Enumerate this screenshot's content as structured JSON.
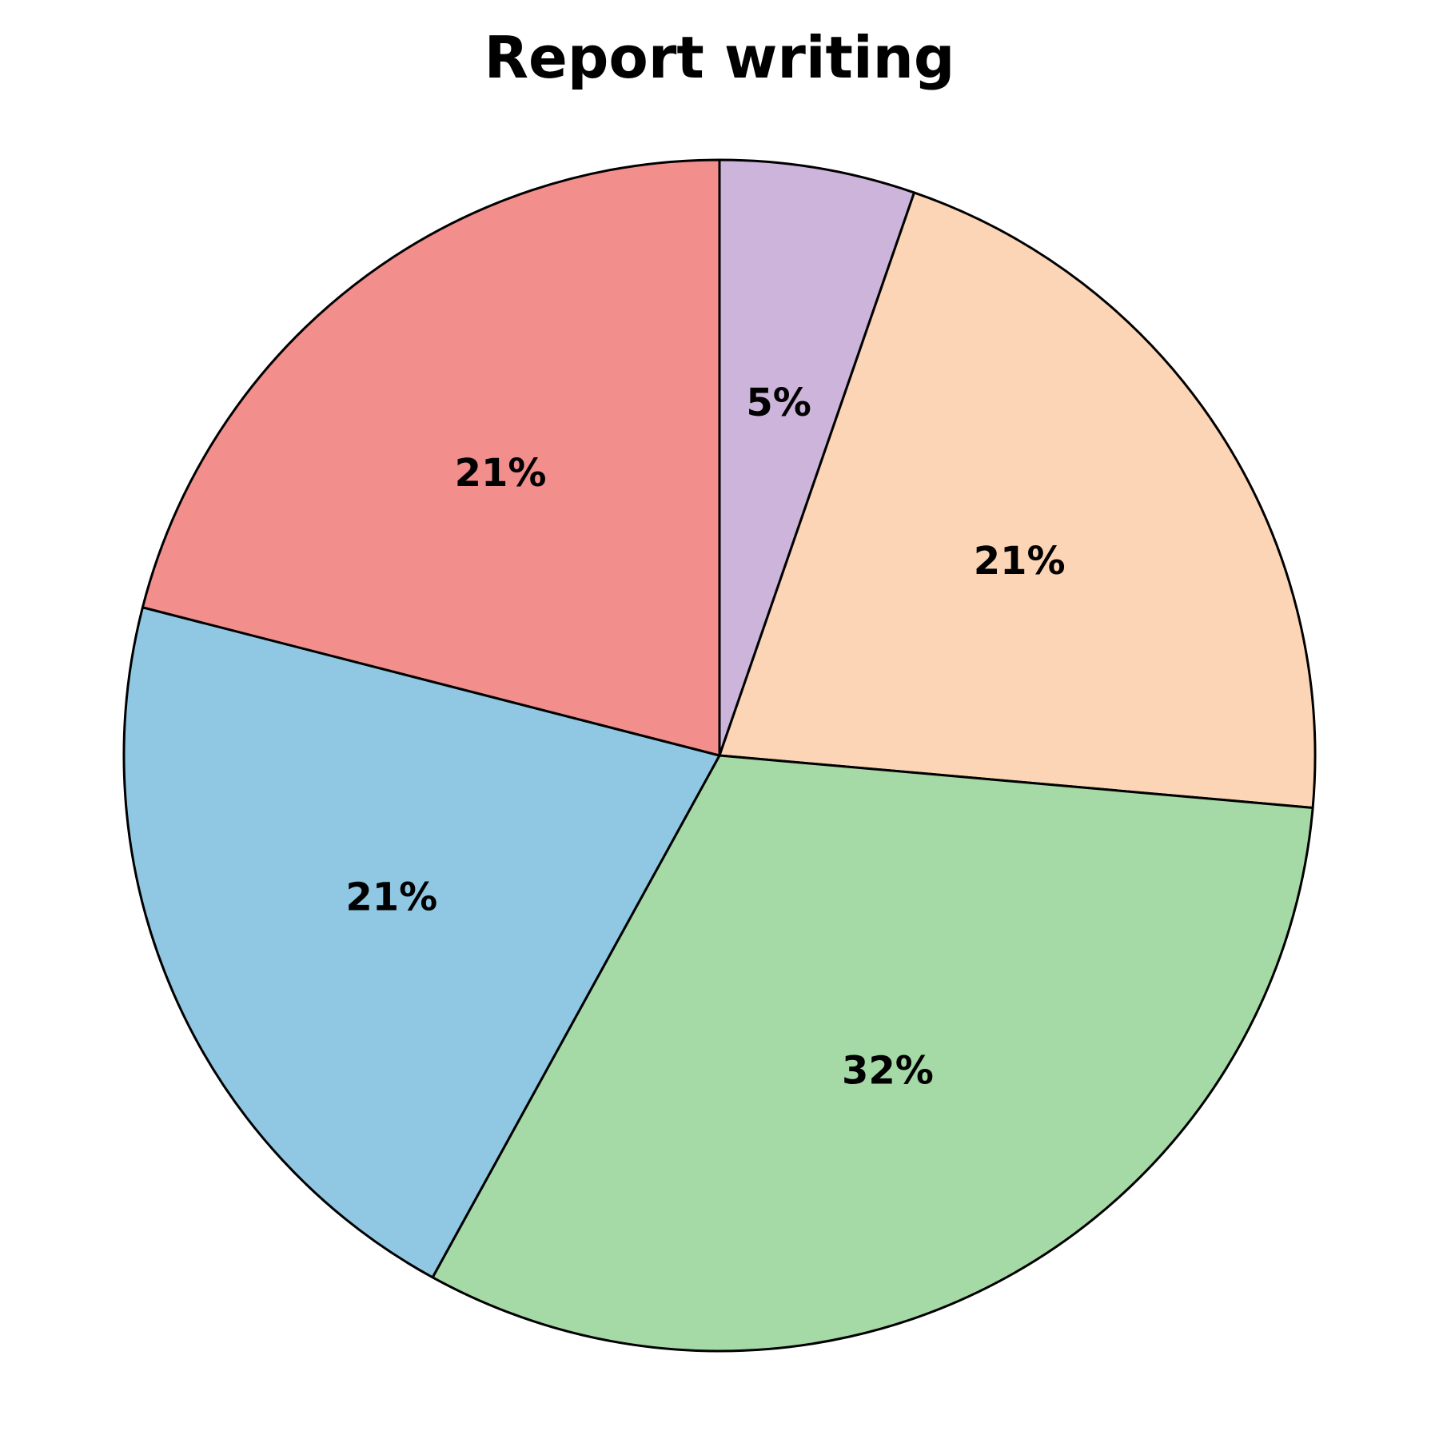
{
  "chart_data": {
    "type": "pie",
    "title": "Report writing",
    "start_angle_deg": 90,
    "direction": "clockwise",
    "slices": [
      {
        "label_text": "5%",
        "value": 5.3,
        "color": "#CDB4DB"
      },
      {
        "label_text": "21%",
        "value": 21.1,
        "color": "#FBD5B5"
      },
      {
        "label_text": "32%",
        "value": 31.6,
        "color": "#A5D9A5"
      },
      {
        "label_text": "21%",
        "value": 21.0,
        "color": "#90C8E4"
      },
      {
        "label_text": "21%",
        "value": 21.0,
        "color": "#F28E8C"
      }
    ]
  }
}
